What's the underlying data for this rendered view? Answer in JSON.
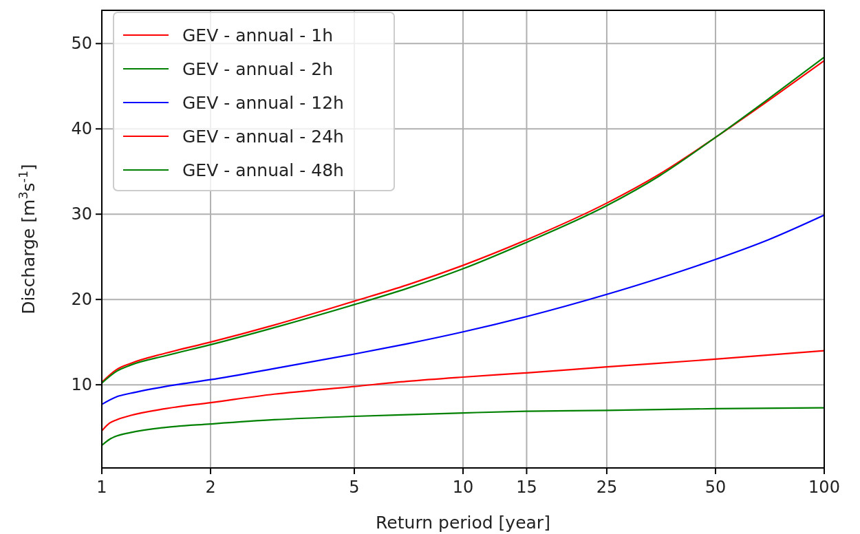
{
  "chart_data": {
    "type": "line",
    "xlabel": "Return period [year]",
    "ylabel": "Discharge [m$^{3}$s$^{-1}$]",
    "log": "x",
    "xlim": [
      1,
      100
    ],
    "xticks": [
      1,
      2,
      5,
      10,
      15,
      25,
      50,
      100
    ],
    "ylim": [
      0.25,
      53.9
    ],
    "yticks": [
      10,
      20,
      30,
      40,
      50
    ],
    "grid": true,
    "legend": "top left",
    "line_style": "solid",
    "series": [
      {
        "name": "GEV - annual - 1h",
        "color": "#ff0000",
        "x": [
          1,
          1.1,
          1.2,
          1.5,
          2,
          3,
          5,
          7,
          10,
          15,
          25,
          35,
          50,
          70,
          100
        ],
        "values": [
          10.3,
          11.8,
          12.5,
          13.7,
          15.0,
          17.0,
          19.8,
          21.7,
          24.0,
          27.0,
          31.3,
          34.7,
          39.0,
          43.3,
          48.0
        ]
      },
      {
        "name": "GEV - annual - 2h",
        "color": "#008000",
        "x": [
          1,
          1.1,
          1.2,
          1.5,
          2,
          3,
          5,
          7,
          10,
          15,
          25,
          35,
          50,
          70,
          100
        ],
        "values": [
          10.2,
          11.6,
          12.3,
          13.4,
          14.7,
          16.7,
          19.4,
          21.3,
          23.6,
          26.7,
          31.0,
          34.5,
          39.0,
          43.5,
          48.4
        ]
      },
      {
        "name": "GEV - annual - 12h",
        "color": "#0000ff",
        "x": [
          1,
          1.1,
          1.2,
          1.5,
          2,
          3,
          5,
          7,
          10,
          15,
          25,
          35,
          50,
          70,
          100
        ],
        "values": [
          7.7,
          8.6,
          9.0,
          9.8,
          10.6,
          11.9,
          13.6,
          14.8,
          16.2,
          18.0,
          20.6,
          22.5,
          24.7,
          27.0,
          29.9
        ]
      },
      {
        "name": "GEV - annual - 24h",
        "color": "#ff0000",
        "x": [
          1,
          1.05,
          1.1,
          1.2,
          1.5,
          2,
          3,
          5,
          7,
          10,
          15,
          25,
          50,
          100
        ],
        "values": [
          4.6,
          5.5,
          5.9,
          6.4,
          7.2,
          7.9,
          8.9,
          9.8,
          10.4,
          10.9,
          11.4,
          12.1,
          13.0,
          14.0
        ]
      },
      {
        "name": "GEV - annual - 48h",
        "color": "#008000",
        "x": [
          1,
          1.05,
          1.1,
          1.2,
          1.5,
          2,
          3,
          5,
          7,
          10,
          15,
          25,
          50,
          100
        ],
        "values": [
          2.9,
          3.6,
          4.0,
          4.4,
          5.0,
          5.4,
          5.9,
          6.3,
          6.5,
          6.7,
          6.9,
          7.0,
          7.2,
          7.3
        ]
      }
    ]
  }
}
